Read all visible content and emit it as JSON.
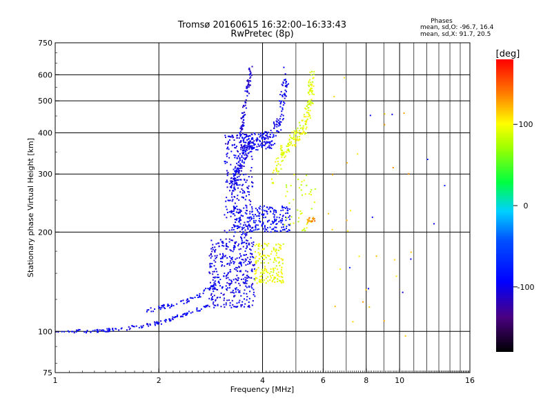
{
  "chart_data": {
    "type": "scatter",
    "title_line1": "Tromsø 20160615 16:32:00–16:33:43",
    "title_line2": "RwPretec (8p)",
    "xlabel": "Frequency [MHz]",
    "ylabel": "Stationary phase Virtual Height [km]",
    "x_scale": "log",
    "y_scale": "log",
    "xlim": [
      1,
      16
    ],
    "ylim": [
      75,
      750
    ],
    "x_ticks": [
      {
        "value": 1,
        "label": "1"
      },
      {
        "value": 2,
        "label": "2"
      },
      {
        "value": 4,
        "label": "4"
      },
      {
        "value": 6,
        "label": "6"
      },
      {
        "value": 8,
        "label": "8"
      },
      {
        "value": 10,
        "label": "10"
      },
      {
        "value": 16,
        "label": "16"
      }
    ],
    "y_ticks": [
      {
        "value": 75,
        "label": "75"
      },
      {
        "value": 100,
        "label": "100"
      },
      {
        "value": 200,
        "label": "200"
      },
      {
        "value": 300,
        "label": "300"
      },
      {
        "value": 400,
        "label": "400"
      },
      {
        "value": 500,
        "label": "500"
      },
      {
        "value": 600,
        "label": "600"
      },
      {
        "value": 750,
        "label": "750"
      }
    ],
    "major_grid_x": [
      1,
      2,
      4,
      6,
      8,
      10,
      16
    ],
    "minor_grid_x": [
      5,
      7,
      9,
      11,
      12,
      13,
      14,
      15
    ],
    "major_grid_y": [
      100,
      200,
      300,
      400,
      500,
      600
    ],
    "phase_stats": {
      "heading": "Phases",
      "line_o": "mean, sd,O: -96.7, 16.4",
      "line_x": "mean, sd,X:  91.7, 20.5"
    },
    "colorbar": {
      "label": "[deg]",
      "range": [
        -180,
        180
      ],
      "ticks": [
        {
          "value": 100,
          "label": "100"
        },
        {
          "value": 0,
          "label": "0"
        },
        {
          "value": -100,
          "label": "-100"
        }
      ]
    },
    "clusters": [
      {
        "name": "low-trace",
        "phase": -95,
        "n": 140,
        "kind": "curve",
        "fx": [
          1.0,
          1.3,
          1.6,
          2.0,
          2.4,
          2.8
        ],
        "fy": [
          100,
          100,
          102,
          106,
          113,
          120
        ],
        "jx": 0.01,
        "jy": 0.012
      },
      {
        "name": "low-trace-2",
        "phase": -92,
        "n": 70,
        "kind": "curve",
        "fx": [
          1.85,
          2.2,
          2.6,
          2.9
        ],
        "fy": [
          116,
          120,
          128,
          138
        ],
        "jx": 0.01,
        "jy": 0.015
      },
      {
        "name": "rise-cloud",
        "phase": -100,
        "n": 380,
        "kind": "box",
        "fx": [
          2.8,
          3.8
        ],
        "fy": [
          118,
          190
        ],
        "jx": 0,
        "jy": 0
      },
      {
        "name": "e-cusp",
        "phase": -102,
        "n": 260,
        "kind": "box",
        "fx": [
          3.1,
          3.75
        ],
        "fy": [
          190,
          400
        ],
        "jx": 0,
        "jy": 0
      },
      {
        "name": "spread-F-o",
        "phase": -98,
        "n": 320,
        "kind": "curve",
        "fx": [
          3.25,
          3.4,
          3.6,
          3.9,
          4.2,
          4.5,
          4.7
        ],
        "fy": [
          260,
          320,
          370,
          380,
          380,
          430,
          600
        ],
        "jx": 0.02,
        "jy": 0.06
      },
      {
        "name": "f-upper",
        "phase": -105,
        "n": 90,
        "kind": "curve",
        "fx": [
          3.45,
          3.55,
          3.7
        ],
        "fy": [
          380,
          480,
          620
        ],
        "jx": 0.01,
        "jy": 0.04
      },
      {
        "name": "f1-band",
        "phase": -90,
        "n": 220,
        "kind": "box",
        "fx": [
          3.3,
          4.8
        ],
        "fy": [
          200,
          240
        ],
        "jx": 0,
        "jy": 0
      },
      {
        "name": "x-mid",
        "phase": 95,
        "n": 170,
        "kind": "box",
        "fx": [
          3.8,
          4.6
        ],
        "fy": [
          140,
          185
        ],
        "jx": 0,
        "jy": 0
      },
      {
        "name": "x-upper",
        "phase": 92,
        "n": 200,
        "kind": "curve",
        "fx": [
          4.3,
          4.6,
          5.0,
          5.3,
          5.5,
          5.6
        ],
        "fy": [
          290,
          350,
          390,
          420,
          500,
          600
        ],
        "jx": 0.02,
        "jy": 0.05
      },
      {
        "name": "x-sparse",
        "phase": 85,
        "n": 45,
        "kind": "box",
        "fx": [
          4.6,
          5.7
        ],
        "fy": [
          200,
          300
        ],
        "jx": 0,
        "jy": 0
      },
      {
        "name": "x-orange",
        "phase": 135,
        "n": 18,
        "kind": "box",
        "fx": [
          5.4,
          5.8
        ],
        "fy": [
          213,
          222
        ],
        "jx": 0,
        "jy": 0
      },
      {
        "name": "outliers-hi",
        "phase": 120,
        "n": 28,
        "kind": "box",
        "fx": [
          6.0,
          11.5
        ],
        "fy": [
          90,
          600
        ],
        "jx": 0,
        "jy": 0
      },
      {
        "name": "outliers-lo",
        "phase": -90,
        "n": 10,
        "kind": "box",
        "fx": [
          7.0,
          14.5
        ],
        "fy": [
          130,
          520
        ],
        "jx": 0,
        "jy": 0
      }
    ]
  }
}
